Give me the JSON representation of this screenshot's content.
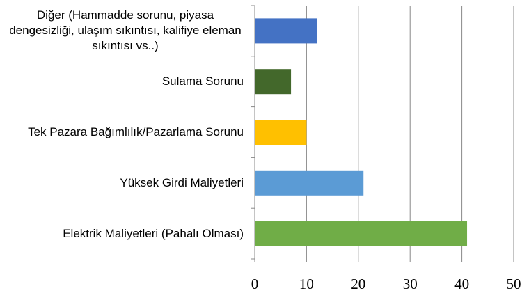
{
  "chart_data": {
    "type": "bar",
    "orientation": "horizontal",
    "categories": [
      "Diğer (Hammadde sorunu, piyasa dengesizliği, ulaşım sıkıntısı, kalifiye eleman sıkıntısı vs..)",
      "Sulama Sorunu",
      "Tek Pazara Bağımlılık/Pazarlama Sorunu",
      "Yüksek Girdi Maliyetleri",
      "Elektrik Maliyetleri (Pahalı Olması)"
    ],
    "values": [
      12,
      7,
      10,
      21,
      41
    ],
    "colors": [
      "#4472c4",
      "#43682b",
      "#ffc000",
      "#5b9bd5",
      "#70ad47"
    ],
    "xlim": [
      0,
      50
    ],
    "xticks": [
      0,
      10,
      20,
      30,
      40,
      50
    ],
    "grid": true
  }
}
